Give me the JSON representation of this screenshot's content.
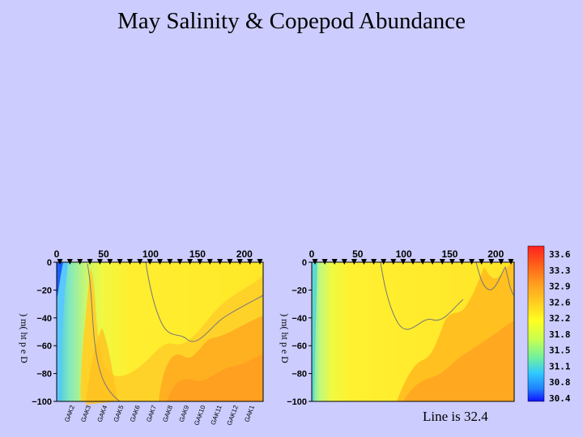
{
  "title": "May Salinity & Copepod Abundance",
  "footnote": "Line is 32.4",
  "chart_data": [
    {
      "type": "heatmap",
      "panel": "left",
      "x_ticks": [
        0,
        50,
        100,
        150,
        200
      ],
      "y_ticks": [
        0,
        -20,
        -40,
        -60,
        -80,
        -100
      ],
      "xlim": [
        0,
        220
      ],
      "ylim": [
        -100,
        0
      ],
      "ylabel": ") m( ht p e D",
      "stations": [
        "GAK2",
        "GAK3",
        "GAK4",
        "GAK5",
        "GAK6",
        "GAK7",
        "GAK8",
        "GAK9",
        "GAK10",
        "GAK11",
        "GAK12",
        "GAK1"
      ],
      "contour_value": 32.4
    },
    {
      "type": "heatmap",
      "panel": "right",
      "x_ticks": [
        0,
        50,
        100,
        150,
        200
      ],
      "y_ticks": [
        0,
        -20,
        -40,
        -60,
        -80,
        -100
      ],
      "xlim": [
        0,
        220
      ],
      "ylim": [
        -100,
        0
      ],
      "ylabel": ") m( ht p e D",
      "contour_value": 32.4
    }
  ],
  "colorbar": {
    "labels": [
      "33.6",
      "33.3",
      "32.9",
      "32.6",
      "32.2",
      "31.8",
      "31.5",
      "31.1",
      "30.8",
      "30.4"
    ],
    "colors": [
      "#ff2a2a",
      "#ff6a1a",
      "#ffa020",
      "#ffd020",
      "#ffff20",
      "#c8ff50",
      "#70f0a0",
      "#30c8ff",
      "#2080ff",
      "#1010ff"
    ]
  }
}
